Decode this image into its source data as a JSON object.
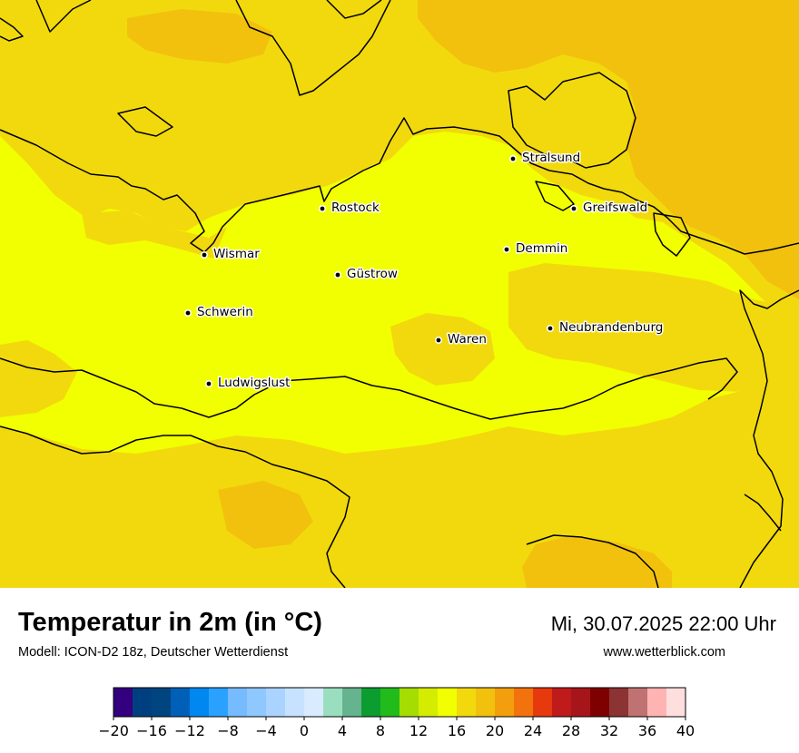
{
  "title": "Temperatur in 2m (in °C)",
  "model": "Modell: ICON-D2 18z, Deutscher Wetterdienst",
  "datetime": "Mi, 30.07.2025 22:00 Uhr",
  "website": "www.wetterblick.com",
  "cities": [
    {
      "name": "Stralsund"
    },
    {
      "name": "Rostock"
    },
    {
      "name": "Greifswald"
    },
    {
      "name": "Wismar"
    },
    {
      "name": "Demmin"
    },
    {
      "name": "Güstrow"
    },
    {
      "name": "Schwerin"
    },
    {
      "name": "Neubrandenburg"
    },
    {
      "name": "Waren"
    },
    {
      "name": "Ludwigslust"
    }
  ],
  "colors": {
    "temp_14_16": "#f2ff00",
    "temp_16_18": "#f2d90d",
    "temp_18_20": "#f2c10d"
  },
  "colorbar": {
    "ticks": [
      "−20",
      "−16",
      "−12",
      "−8",
      "−4",
      "0",
      "4",
      "8",
      "12",
      "16",
      "20",
      "24",
      "28",
      "32",
      "36",
      "40"
    ],
    "colors": [
      "#33007f",
      "#003f7f",
      "#00457f",
      "#0060b8",
      "#0088f0",
      "#2aa1ff",
      "#77bbff",
      "#8ec8ff",
      "#aad4ff",
      "#c6e2ff",
      "#d8ebff",
      "#99dfbf",
      "#66b38f",
      "#0c9d30",
      "#22bb1c",
      "#a6dd00",
      "#d4ec00",
      "#f2ff00",
      "#f2d90d",
      "#f2c10d",
      "#f29e0d",
      "#f2730d",
      "#e6390d",
      "#c01b1b",
      "#a6151a",
      "#7f0000",
      "#8c3333",
      "#c07272",
      "#ffb3b3",
      "#ffdede"
    ]
  }
}
